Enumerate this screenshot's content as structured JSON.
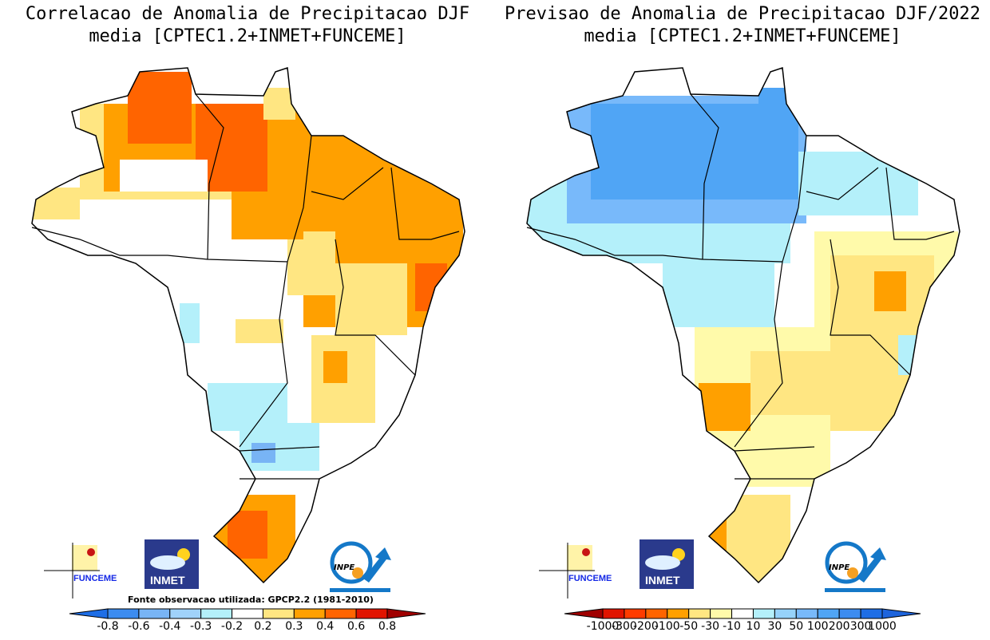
{
  "left_panel": {
    "title_line1": "Correlacao de Anomalia de Precipitacao DJF",
    "title_line2": "media [CPTEC1.2+INMET+FUNCEME]",
    "source_note": "Fonte observacao utilizada: GPCP2.2 (1981-2010)",
    "colorbar": {
      "labels": [
        "-0.8",
        "-0.6",
        "-0.4",
        "-0.3",
        "-0.2",
        "0.2",
        "0.3",
        "0.4",
        "0.6",
        "0.8"
      ],
      "colors": [
        "#1e6ee6",
        "#3c8cf0",
        "#78b4f5",
        "#a0d2fa",
        "#b4f0fa",
        "#ffffff",
        "#ffe682",
        "#ffa000",
        "#ff6400",
        "#e11400",
        "#a00000"
      ]
    }
  },
  "right_panel": {
    "title_line1": "Previsao de Anomalia de Precipitacao DJF/2022",
    "title_line2": "media [CPTEC1.2+INMET+FUNCEME]",
    "colorbar": {
      "labels": [
        "-1000",
        "-300",
        "-200",
        "-100",
        "-50",
        "-30",
        "-10",
        "10",
        "30",
        "50",
        "100",
        "200",
        "300",
        "1000"
      ],
      "colors": [
        "#a00000",
        "#e11400",
        "#ff3c00",
        "#ff6400",
        "#ffa000",
        "#ffe682",
        "#fffaaa",
        "#ffffff",
        "#b4f0fa",
        "#96d2fa",
        "#78b9fa",
        "#50a5f5",
        "#3c8cf0",
        "#1e6ee6",
        "#1e64dc"
      ]
    }
  },
  "logos": {
    "funceme": "FUNCEME",
    "inmet": "INMET",
    "inpe": "INPE",
    "inpe_sub": "UNIDADE DE PESQUISA DO MCTI"
  }
}
